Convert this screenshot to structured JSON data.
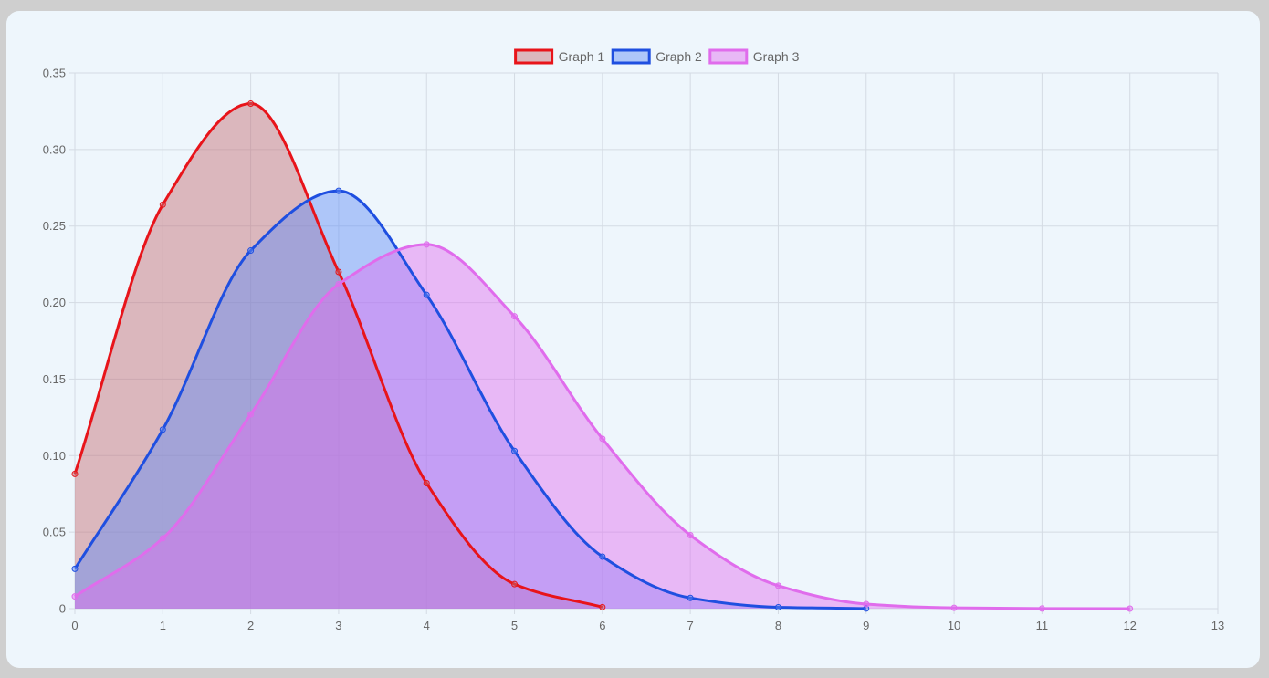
{
  "chart_data": {
    "type": "area",
    "title": "",
    "xlabel": "",
    "ylabel": "",
    "xlim": [
      0,
      13
    ],
    "ylim": [
      0,
      0.35
    ],
    "x_ticks": [
      "0",
      "1",
      "2",
      "3",
      "4",
      "5",
      "6",
      "7",
      "8",
      "9",
      "10",
      "11",
      "12",
      "13"
    ],
    "y_ticks": [
      "0",
      "0.05",
      "0.10",
      "0.15",
      "0.20",
      "0.25",
      "0.30",
      "0.35"
    ],
    "grid": true,
    "legend_position": "top",
    "series": [
      {
        "name": "Graph 1",
        "color": "#e8141a",
        "fill": "rgba(196,106,112,0.45)",
        "x": [
          0,
          1,
          2,
          3,
          4,
          5,
          6
        ],
        "values": [
          0.088,
          0.264,
          0.33,
          0.22,
          0.082,
          0.016,
          0.001
        ]
      },
      {
        "name": "Graph 2",
        "color": "#1f4fe0",
        "fill": "rgba(96,140,246,0.45)",
        "x": [
          0,
          1,
          2,
          3,
          4,
          5,
          6,
          7,
          8,
          9
        ],
        "values": [
          0.026,
          0.117,
          0.234,
          0.273,
          0.205,
          0.103,
          0.034,
          0.007,
          0.0009,
          5e-05
        ]
      },
      {
        "name": "Graph 3",
        "color": "#e06cec",
        "fill": "rgba(224,108,240,0.45)",
        "x": [
          0,
          1,
          2,
          3,
          4,
          5,
          6,
          7,
          8,
          9,
          10,
          11,
          12
        ],
        "values": [
          0.008,
          0.046,
          0.127,
          0.212,
          0.238,
          0.191,
          0.111,
          0.048,
          0.015,
          0.003,
          0.0005,
          5e-05,
          2e-06
        ]
      }
    ]
  }
}
